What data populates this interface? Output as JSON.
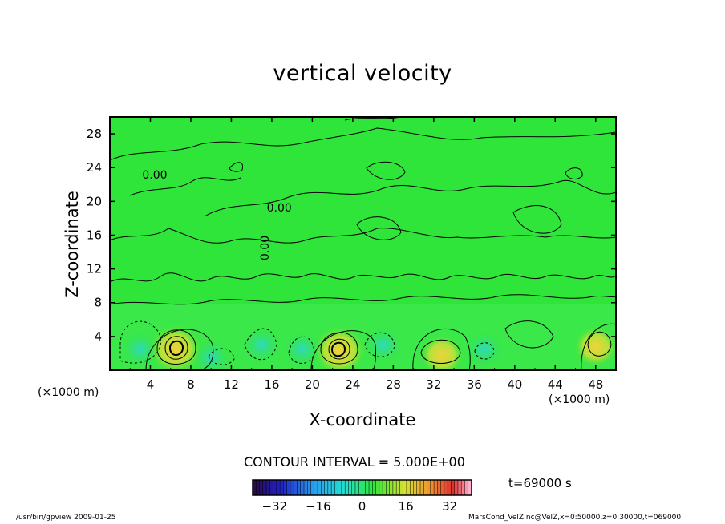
{
  "chart_data": {
    "type": "heatmap",
    "title": "vertical velocity",
    "xlabel": "X-coordinate",
    "ylabel": "Z-coordinate",
    "x_unit_left": "(×1000 m)",
    "x_unit_right": "(×1000 m)",
    "xlim": [
      0,
      50
    ],
    "ylim": [
      0,
      30
    ],
    "x_ticks": [
      "4",
      "8",
      "12",
      "16",
      "20",
      "24",
      "28",
      "32",
      "36",
      "40",
      "44",
      "48"
    ],
    "y_ticks": [
      "4",
      "8",
      "12",
      "16",
      "20",
      "24",
      "28"
    ],
    "contour_labels": [
      "0.00",
      "0.00",
      "0.00"
    ],
    "contour_interval_text": "CONTOUR INTERVAL = 5.000E+00",
    "time_text": "t=69000 s",
    "colorbar": {
      "range": [
        -40,
        40
      ],
      "ticks": [
        "−32",
        "−16",
        "0",
        "16",
        "32"
      ]
    },
    "updraft_cores": [
      {
        "x": 6.5,
        "z": 2.5,
        "value": 20
      },
      {
        "x": 22.7,
        "z": 2.3,
        "value": 20
      },
      {
        "x": 32.8,
        "z": 1.8,
        "value": 10
      },
      {
        "x": 48.0,
        "z": 2.8,
        "value": 10
      }
    ],
    "downdraft_zones": [
      {
        "x": 3.0,
        "z": 2.5,
        "value": -5
      },
      {
        "x": 10.0,
        "z": 1.5,
        "value": -5
      },
      {
        "x": 15.0,
        "z": 3.0,
        "value": -5
      },
      {
        "x": 19.0,
        "z": 2.5,
        "value": -10
      },
      {
        "x": 27.0,
        "z": 3.0,
        "value": -5
      },
      {
        "x": 37.0,
        "z": 2.5,
        "value": -5
      }
    ],
    "colors": {
      "background": "#ffffff",
      "field_base": "#2fe63a",
      "updraft": "#e6d03a",
      "downdraft": "#2fd9c8"
    }
  },
  "footer": {
    "left": "/usr/bin/gpview   2009-01-25",
    "right": "MarsCond_VelZ.nc@VelZ,x=0:50000,z=0:30000,t=069000"
  }
}
